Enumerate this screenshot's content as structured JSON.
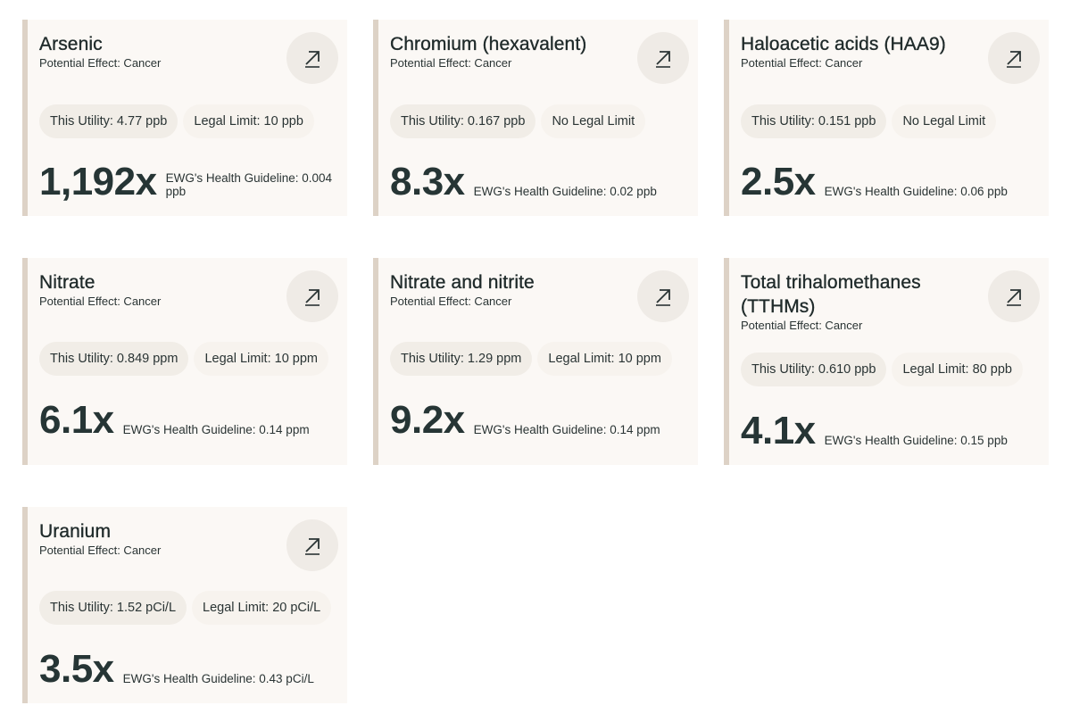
{
  "cards": [
    {
      "name": "Arsenic",
      "effect": "Potential Effect: Cancer",
      "utility": "This Utility: 4.77 ppb",
      "legal": "Legal Limit: 10 ppb",
      "ratio": "1,192x",
      "guideline": "EWG's Health Guideline: 0.004 ppb"
    },
    {
      "name": "Chromium (hexavalent)",
      "effect": "Potential Effect: Cancer",
      "utility": "This Utility: 0.167 ppb",
      "legal": "No Legal Limit",
      "ratio": "8.3x",
      "guideline": "EWG's Health Guideline: 0.02 ppb"
    },
    {
      "name": "Haloacetic acids (HAA9)",
      "effect": "Potential Effect: Cancer",
      "utility": "This Utility: 0.151 ppb",
      "legal": "No Legal Limit",
      "ratio": "2.5x",
      "guideline": "EWG's Health Guideline: 0.06 ppb"
    },
    {
      "name": "Nitrate",
      "effect": "Potential Effect: Cancer",
      "utility": "This Utility: 0.849 ppm",
      "legal": "Legal Limit: 10 ppm",
      "ratio": "6.1x",
      "guideline": "EWG's Health Guideline: 0.14 ppm"
    },
    {
      "name": "Nitrate and nitrite",
      "effect": "Potential Effect: Cancer",
      "utility": "This Utility: 1.29 ppm",
      "legal": "Legal Limit: 10 ppm",
      "ratio": "9.2x",
      "guideline": "EWG's Health Guideline: 0.14 ppm"
    },
    {
      "name": "Total trihalomethanes (TTHMs)",
      "effect": "Potential Effect: Cancer",
      "utility": "This Utility: 0.610 ppb",
      "legal": "Legal Limit: 80 ppb",
      "ratio": "4.1x",
      "guideline": "EWG's Health Guideline: 0.15 ppb"
    },
    {
      "name": "Uranium",
      "effect": "Potential Effect: Cancer",
      "utility": "This Utility: 1.52 pCi/L",
      "legal": "Legal Limit: 20 pCi/L",
      "ratio": "3.5x",
      "guideline": "EWG's Health Guideline: 0.43 pCi/L"
    }
  ],
  "icons": {
    "link": "arrow-up-right-icon"
  },
  "colors": {
    "card_bg": "#fbf8f5",
    "accent_border": "#ddd2c6",
    "pill_bg": "#f1ede7",
    "text": "#1f2a2a"
  }
}
